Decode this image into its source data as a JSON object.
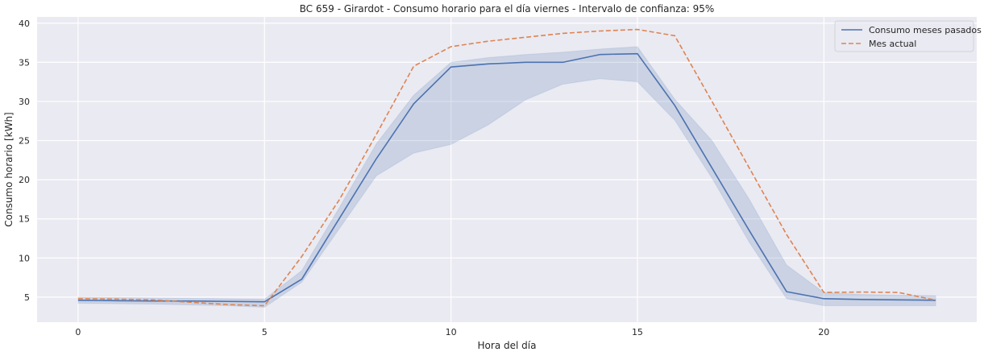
{
  "chart_data": {
    "type": "line",
    "title": "BC 659 - Girardot - Consumo horario para el día viernes - Intervalo de confianza: 95%",
    "xlabel": "Hora del día",
    "ylabel": "Consumo horario [kWh]",
    "xlim": [
      -1.1,
      24.1
    ],
    "ylim": [
      1.8,
      40.8
    ],
    "xticks": [
      0,
      5,
      10,
      15,
      20
    ],
    "yticks": [
      5,
      10,
      15,
      20,
      25,
      30,
      35,
      40
    ],
    "grid": true,
    "legend_position": "top-right",
    "background": "#eaeaf2",
    "grid_color": "#ffffff",
    "x": [
      0,
      1,
      2,
      3,
      4,
      5,
      6,
      7,
      8,
      9,
      10,
      11,
      12,
      13,
      14,
      15,
      16,
      17,
      18,
      19,
      20,
      21,
      22,
      23
    ],
    "series": [
      {
        "name": "Consumo meses pasados",
        "color": "#4c72b0",
        "style": "solid",
        "values": [
          4.6,
          4.55,
          4.5,
          4.5,
          4.45,
          4.4,
          7.3,
          15.0,
          22.7,
          29.7,
          34.4,
          34.8,
          35.0,
          35.0,
          36.0,
          36.1,
          29.5,
          21.5,
          13.5,
          5.7,
          4.8,
          4.7,
          4.65,
          4.6
        ],
        "ci_lower": [
          4.2,
          4.15,
          4.1,
          4.0,
          3.9,
          3.7,
          6.9,
          13.7,
          20.5,
          23.4,
          24.5,
          27.0,
          30.2,
          32.2,
          32.9,
          32.5,
          27.6,
          20.2,
          12.0,
          4.8,
          3.9,
          3.9,
          3.9,
          3.9
        ],
        "ci_upper": [
          5.0,
          4.95,
          4.9,
          4.85,
          4.8,
          4.75,
          8.4,
          16.4,
          24.6,
          30.8,
          35.0,
          35.6,
          36.0,
          36.3,
          36.7,
          37.0,
          30.3,
          25.0,
          17.5,
          9.1,
          5.6,
          5.35,
          5.25,
          5.2
        ],
        "ci_color": "#4c72b0"
      },
      {
        "name": "Mes actual",
        "color": "#dd8452",
        "style": "dashed",
        "values": [
          4.8,
          4.75,
          4.65,
          4.35,
          4.05,
          3.9,
          10.2,
          17.4,
          25.8,
          34.5,
          37.0,
          37.7,
          38.2,
          38.7,
          39.0,
          39.2,
          38.4,
          30.0,
          21.5,
          13.0,
          5.6,
          5.65,
          5.6,
          4.6
        ]
      }
    ]
  }
}
